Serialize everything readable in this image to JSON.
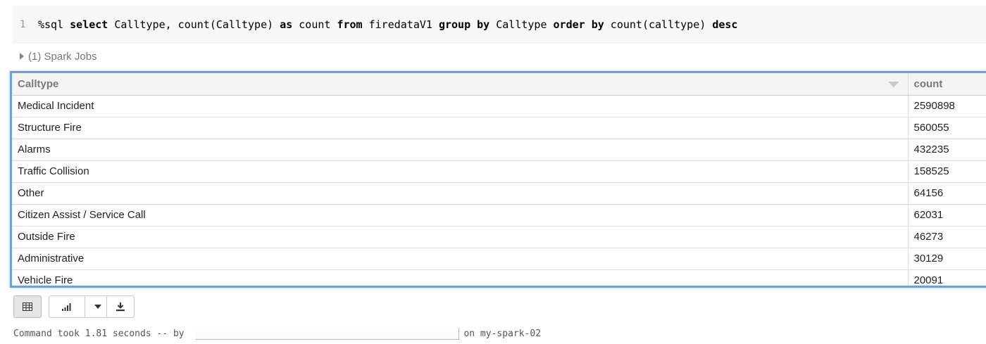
{
  "cell": {
    "line_number": "1",
    "query_tokens": [
      {
        "text": "%sql ",
        "kw": false
      },
      {
        "text": "select",
        "kw": true
      },
      {
        "text": " Calltype, count(Calltype) ",
        "kw": false
      },
      {
        "text": "as",
        "kw": true
      },
      {
        "text": " count ",
        "kw": false
      },
      {
        "text": "from",
        "kw": true
      },
      {
        "text": " firedataV1 ",
        "kw": false
      },
      {
        "text": "group by",
        "kw": true
      },
      {
        "text": " Calltype ",
        "kw": false
      },
      {
        "text": "order by",
        "kw": true
      },
      {
        "text": " count(calltype) ",
        "kw": false
      },
      {
        "text": "desc",
        "kw": true
      }
    ]
  },
  "spark_jobs": {
    "label": "(1) Spark Jobs"
  },
  "results": {
    "columns": [
      "Calltype",
      "count"
    ],
    "rows": [
      [
        "Medical Incident",
        "2590898"
      ],
      [
        "Structure Fire",
        "560055"
      ],
      [
        "Alarms",
        "432235"
      ],
      [
        "Traffic Collision",
        "158525"
      ],
      [
        "Other",
        "64156"
      ],
      [
        "Citizen Assist / Service Call",
        "62031"
      ],
      [
        "Outside Fire",
        "46273"
      ],
      [
        "Administrative",
        "30129"
      ],
      [
        "Vehicle Fire",
        "20091"
      ]
    ]
  },
  "toolbar": {
    "table_icon": "table-icon",
    "chart_icon": "bar-chart-icon",
    "dropdown_icon": "chevron-down-icon",
    "download_icon": "download-icon"
  },
  "status": {
    "prefix": "Command took 1.81 seconds -- by ",
    "suffix": "on my-spark-02"
  },
  "colors": {
    "accent": "#6e9fe0",
    "code_bg": "#f7f7f7",
    "header_bg": "#f4f4f4"
  }
}
